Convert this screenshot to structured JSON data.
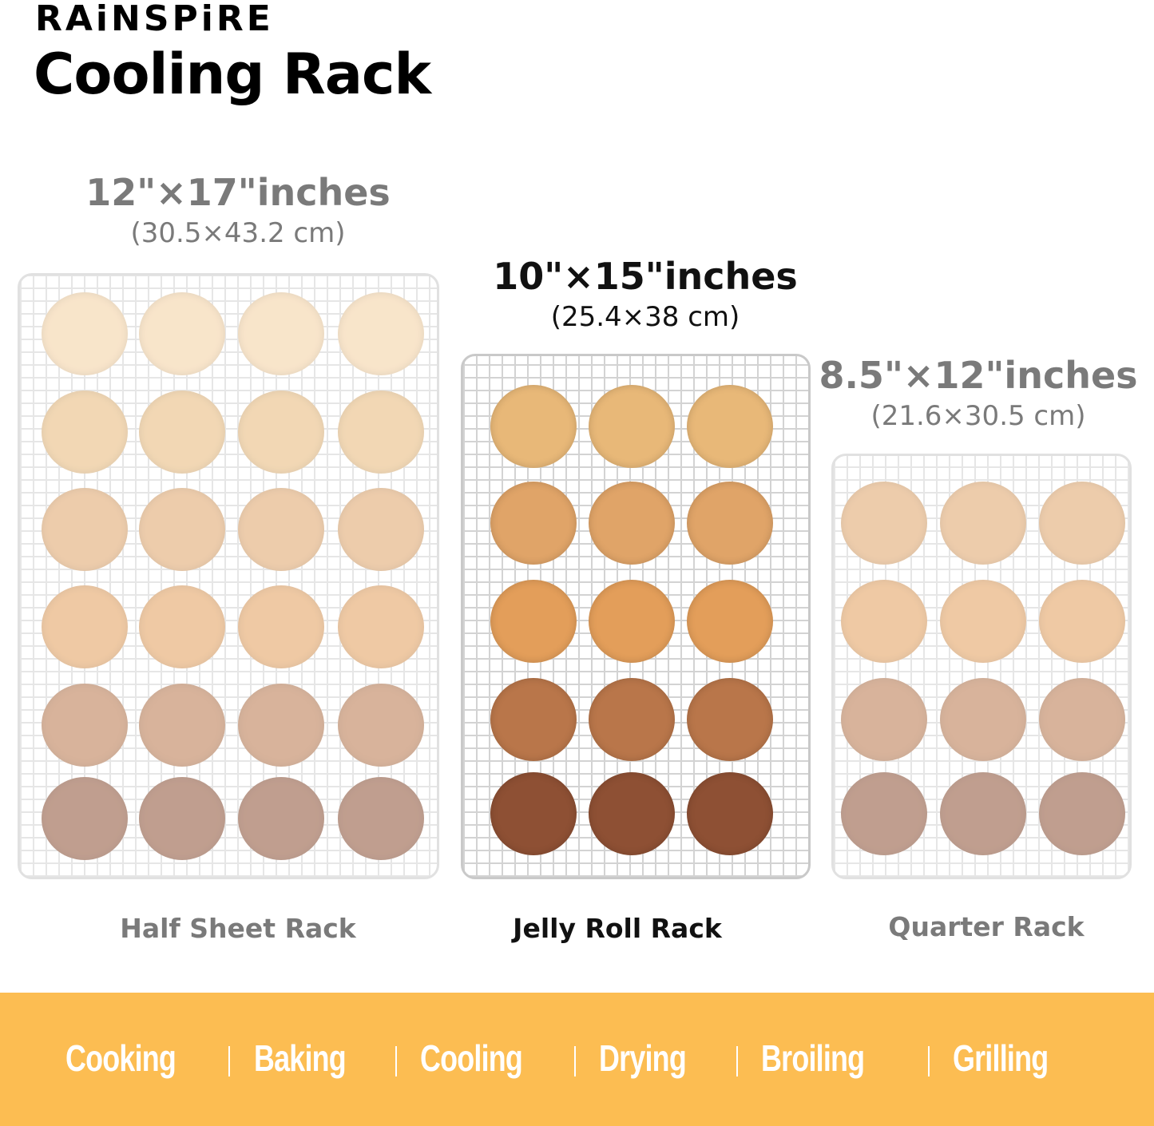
{
  "brand": "RAiNSPiRE",
  "title": "Cooling Rack",
  "racks": [
    {
      "size": "12\"×17\"inches",
      "metric": "(30.5×43.2 cm)",
      "name": "Half Sheet Rack",
      "highlighted": false
    },
    {
      "size": "10\"×15\"inches",
      "metric": "(25.4×38 cm)",
      "name": "Jelly Roll Rack",
      "highlighted": true
    },
    {
      "size": "8.5\"×12\"inches",
      "metric": "(21.6×30.5 cm)",
      "name": "Quarter Rack",
      "highlighted": false
    }
  ],
  "cookie_colors": [
    "#F4D0A0",
    "#E8B878",
    "#E0A468",
    "#E39E5A",
    "#B9764A",
    "#8E5034"
  ],
  "uses": [
    "Cooking",
    "Baking",
    "Cooling",
    "Drying",
    "Broiling",
    "Grilling"
  ],
  "banner_color": "#FCBD52"
}
